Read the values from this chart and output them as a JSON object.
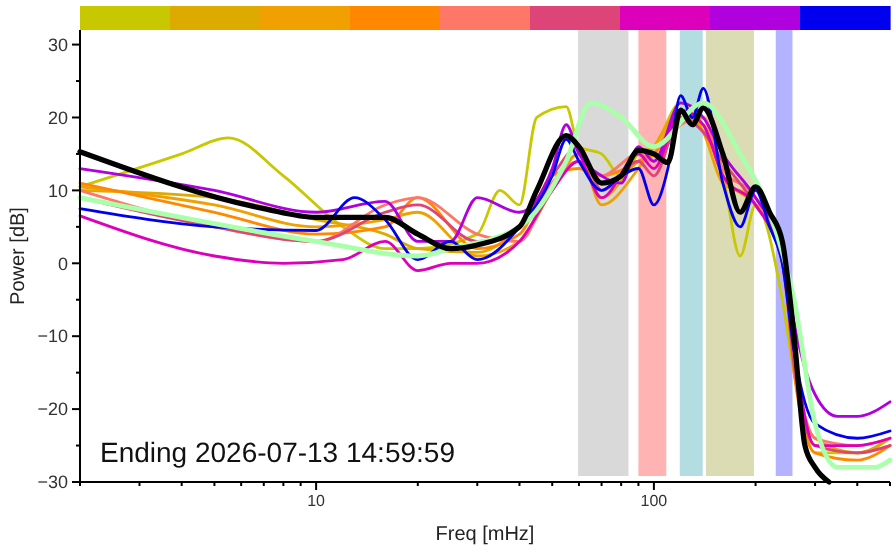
{
  "chart_data": {
    "type": "line",
    "xlabel": "Freq [mHz]",
    "ylabel": "Power [dB]",
    "log": "x",
    "xlim": [
      2,
      500
    ],
    "ylim": [
      -30,
      32
    ],
    "xticks": [
      {
        "value": 2,
        "label": null
      },
      {
        "value": 3,
        "label": null
      },
      {
        "value": 4,
        "label": null
      },
      {
        "value": 5,
        "label": null
      },
      {
        "value": 6,
        "label": null
      },
      {
        "value": 7,
        "label": null
      },
      {
        "value": 8,
        "label": null
      },
      {
        "value": 9,
        "label": null
      },
      10,
      {
        "value": 20,
        "label": null
      },
      {
        "value": 30,
        "label": null
      },
      {
        "value": 40,
        "label": null
      },
      {
        "value": 50,
        "label": null
      },
      {
        "value": 60,
        "label": null
      },
      {
        "value": 70,
        "label": null
      },
      {
        "value": 80,
        "label": null
      },
      {
        "value": 90,
        "label": null
      },
      100,
      {
        "value": 200,
        "label": null
      },
      {
        "value": 300,
        "label": null
      },
      {
        "value": 400,
        "label": null
      },
      {
        "value": 500,
        "label": null
      }
    ],
    "yticks": [
      -30,
      {
        "value": -25,
        "label": null
      },
      -20,
      {
        "value": -15,
        "label": null
      },
      -10,
      {
        "value": -5,
        "label": null
      },
      0,
      {
        "value": 5,
        "label": null
      },
      10,
      {
        "value": 15,
        "label": null
      },
      20,
      {
        "value": 25,
        "label": null
      },
      30
    ],
    "grid": false,
    "line_style": "solid",
    "marker": "none",
    "annotations": [
      "Ending 2026-07-13 14:59:59"
    ],
    "bands": [
      {
        "axis": "x",
        "from": 59,
        "to": 85,
        "color": "#d9d9d9"
      },
      {
        "axis": "x",
        "from": 89,
        "to": 110,
        "color": "#ffb3b3"
      },
      {
        "axis": "x",
        "from": 118,
        "to": 141,
        "color": "#b3dde0"
      },
      {
        "axis": "x",
        "from": 141,
        "to": 200,
        "color": "#dcdcb4"
      },
      {
        "axis": "x",
        "from": 227,
        "to": 260,
        "color": "#b3b3ff"
      }
    ],
    "series": [
      {
        "color": "#c8c800",
        "x": [
          2,
          4,
          5.5,
          8,
          12,
          16,
          20,
          30,
          35,
          40,
          45,
          55,
          60,
          70,
          80,
          90,
          100,
          120,
          140,
          160,
          180,
          200,
          240,
          260,
          300,
          400,
          500
        ],
        "values": [
          10.5,
          15,
          17.2,
          12,
          5,
          2,
          2,
          4,
          10,
          8,
          20,
          21.5,
          16,
          15,
          12,
          15,
          16,
          22,
          18,
          12,
          1,
          8,
          -5,
          -15,
          -26,
          -26,
          -24
        ]
      },
      {
        "color": "#ddaa00",
        "x": [
          2,
          5,
          10,
          16,
          20,
          30,
          40,
          50,
          60,
          70,
          90,
          100,
          120,
          140,
          160,
          200,
          240,
          260,
          300,
          400,
          500
        ],
        "values": [
          10,
          9,
          6,
          4,
          2,
          1.5,
          5,
          11,
          15,
          9,
          14,
          15,
          21,
          19,
          12,
          8,
          2,
          -13,
          -24,
          -26,
          -24
        ]
      },
      {
        "color": "#f0a000",
        "x": [
          2,
          5,
          10,
          16,
          20,
          30,
          40,
          50,
          60,
          70,
          90,
          100,
          120,
          140,
          160,
          200,
          240,
          260,
          300,
          400,
          500
        ],
        "values": [
          10.5,
          8,
          5,
          6,
          7,
          1,
          3,
          10,
          15,
          8,
          13,
          16,
          21,
          18,
          11,
          9,
          0,
          -14,
          -25,
          -26,
          -25
        ]
      },
      {
        "color": "#ff8800",
        "x": [
          2,
          5,
          10,
          16,
          20,
          30,
          40,
          50,
          60,
          70,
          90,
          100,
          120,
          140,
          160,
          200,
          240,
          260,
          300,
          400,
          500
        ],
        "values": [
          11,
          7,
          4,
          5,
          9,
          2,
          4,
          12,
          13,
          12,
          14,
          15,
          20,
          19,
          12,
          8,
          1,
          -15,
          -26,
          -27,
          -25
        ]
      },
      {
        "color": "#ff7766",
        "x": [
          2,
          5,
          10,
          16,
          20,
          30,
          40,
          50,
          60,
          70,
          90,
          100,
          120,
          140,
          160,
          200,
          240,
          260,
          300,
          400,
          500
        ],
        "values": [
          10,
          5,
          3,
          8,
          9,
          4,
          3,
          11,
          14,
          12,
          15,
          14,
          19,
          20,
          13,
          9,
          0,
          -13,
          -24,
          -25,
          -24
        ]
      },
      {
        "color": "#dd4477",
        "x": [
          2,
          5,
          10,
          16,
          20,
          30,
          40,
          50,
          60,
          70,
          90,
          100,
          120,
          140,
          160,
          200,
          240,
          260,
          300,
          400,
          500
        ],
        "values": [
          9,
          5,
          3,
          7,
          8,
          3,
          5,
          12,
          16,
          10,
          14,
          12,
          20,
          18,
          14,
          8,
          1,
          -14,
          -25,
          -26,
          -25
        ]
      },
      {
        "color": "#dd00bb",
        "x": [
          2,
          5,
          8,
          12,
          16,
          20,
          25,
          30,
          40,
          50,
          60,
          70,
          90,
          100,
          120,
          140,
          160,
          200,
          240,
          260,
          300,
          400,
          500
        ],
        "values": [
          6.5,
          1,
          0,
          0.5,
          3,
          -1,
          0,
          0,
          3,
          10,
          14,
          9,
          15,
          13,
          21,
          19,
          12,
          8,
          0,
          -12,
          -25,
          -25,
          -24
        ]
      },
      {
        "color": "#b000dd",
        "x": [
          2,
          5,
          10,
          16,
          20,
          25,
          30,
          40,
          50,
          55,
          60,
          70,
          80,
          90,
          100,
          120,
          140,
          160,
          200,
          240,
          260,
          300,
          350,
          400,
          500
        ],
        "values": [
          13,
          10,
          7,
          8.5,
          3,
          3,
          9,
          7,
          13,
          19,
          15,
          12,
          11,
          16,
          14,
          22,
          20,
          15,
          9,
          2,
          -8,
          -18,
          -21,
          -21,
          -19
        ]
      },
      {
        "color": "#0000ee",
        "x": [
          2,
          5,
          10,
          13,
          16,
          20,
          25,
          30,
          40,
          50,
          55,
          60,
          70,
          80,
          90,
          100,
          110,
          120,
          130,
          140,
          160,
          180,
          200,
          220,
          240,
          260,
          300,
          400,
          500
        ],
        "values": [
          7.5,
          5,
          4.5,
          9,
          6,
          0.5,
          3,
          0.5,
          5,
          12,
          17,
          14,
          10,
          12,
          13,
          8,
          13,
          23,
          20,
          24,
          11,
          5,
          10,
          5,
          0,
          -12,
          -22,
          -24,
          -23
        ]
      },
      {
        "color": "#aaffaa",
        "x": [
          2,
          10,
          20,
          25,
          40,
          55,
          65,
          80,
          100,
          140,
          180,
          220,
          260,
          300,
          350,
          450,
          500
        ],
        "values": [
          9,
          3,
          1,
          2,
          5,
          14,
          22,
          20,
          16,
          22,
          15,
          7,
          -5,
          -22,
          -28,
          -28,
          -27
        ]
      },
      {
        "color": "#000000",
        "x": [
          2,
          7,
          10,
          16,
          20,
          25,
          30,
          40,
          45,
          55,
          60,
          70,
          80,
          90,
          100,
          110,
          120,
          130,
          140,
          160,
          180,
          200,
          220,
          240,
          260,
          280,
          300,
          330
        ],
        "values": [
          15.3,
          7.5,
          6.3,
          6.3,
          4,
          2,
          2.5,
          5,
          10,
          17.5,
          16,
          11,
          12,
          15.5,
          15,
          13.8,
          21,
          19,
          21.3,
          15,
          7,
          10.5,
          7,
          3,
          -10,
          -25,
          -28,
          -30
        ]
      }
    ]
  }
}
